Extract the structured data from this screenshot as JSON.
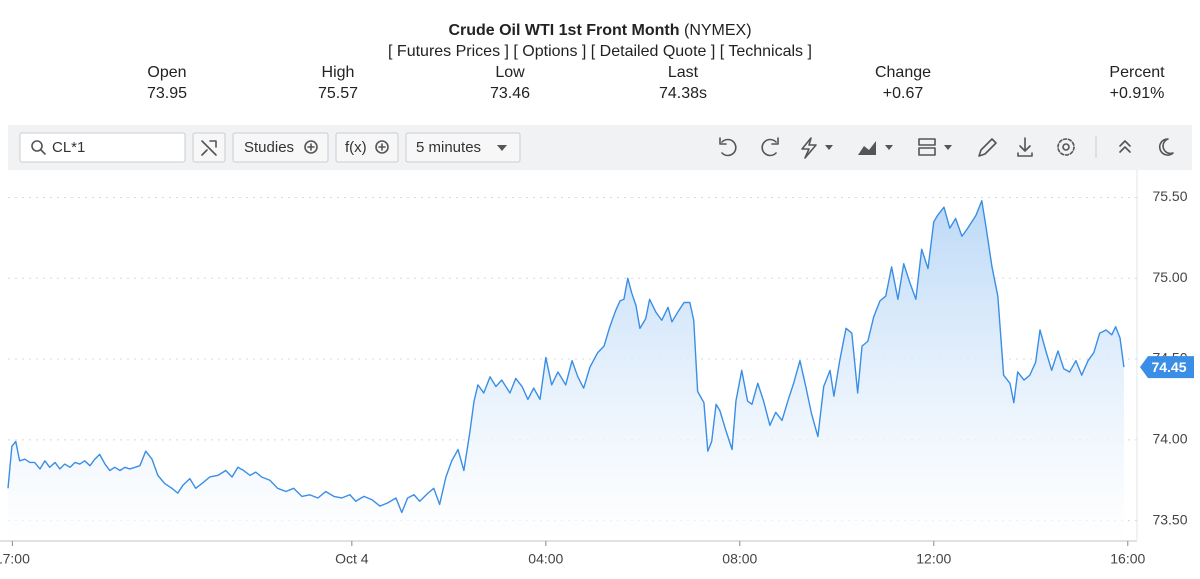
{
  "header": {
    "title": "Crude Oil WTI 1st Front Month",
    "exchange": "(NYMEX)",
    "links": [
      "[ Futures Prices ]",
      "[ Options ]",
      "[ Detailed Quote ]",
      "[ Technicals ]"
    ]
  },
  "quote": [
    {
      "label": "Open",
      "value": "73.95"
    },
    {
      "label": "High",
      "value": "75.57"
    },
    {
      "label": "Low",
      "value": "73.46"
    },
    {
      "label": "Last",
      "value": "74.38s"
    },
    {
      "label": "Change",
      "value": "+0.67",
      "color": "#1e8c1e"
    },
    {
      "label": "Percent",
      "value": "+0.91%",
      "color": "#1e8c1e"
    }
  ],
  "toolbar": {
    "symbol": "CL*1",
    "studies": "Studies",
    "functions": "f(x)",
    "interval": "5 minutes"
  },
  "chart_data": {
    "type": "area",
    "color": "#3a8ee6",
    "grid": true,
    "last_price": 74.45,
    "xlim": [
      -7.09,
      16.19
    ],
    "xticks": [
      {
        "value": -7,
        "label": "17:00"
      },
      {
        "value": 0,
        "label": "Oct 4"
      },
      {
        "value": 4,
        "label": "04:00"
      },
      {
        "value": 8,
        "label": "08:00"
      },
      {
        "value": 12,
        "label": "12:00"
      },
      {
        "value": 16,
        "label": "16:00"
      }
    ],
    "ylim": [
      73.38,
      75.67
    ],
    "yticks": [
      {
        "value": 73.5,
        "label": "73.50"
      },
      {
        "value": 74,
        "label": "74.00"
      },
      {
        "value": 74.5,
        "label": "74.50"
      },
      {
        "value": 75,
        "label": "75.00"
      },
      {
        "value": 75.5,
        "label": "75.50"
      }
    ],
    "x": [
      -7.09,
      -7.01,
      -6.93,
      -6.85,
      -6.74,
      -6.64,
      -6.54,
      -6.43,
      -6.33,
      -6.23,
      -6.12,
      -6.02,
      -5.92,
      -5.81,
      -5.71,
      -5.61,
      -5.51,
      -5.4,
      -5.3,
      -5.2,
      -5.09,
      -4.99,
      -4.89,
      -4.78,
      -4.68,
      -4.58,
      -4.47,
      -4.37,
      -4.25,
      -4.12,
      -4.0,
      -3.86,
      -3.71,
      -3.59,
      -3.48,
      -3.34,
      -3.22,
      -3.09,
      -2.93,
      -2.76,
      -2.6,
      -2.47,
      -2.35,
      -2.23,
      -2.1,
      -1.98,
      -1.86,
      -1.69,
      -1.53,
      -1.36,
      -1.2,
      -1.03,
      -0.87,
      -0.7,
      -0.54,
      -0.37,
      -0.21,
      -0.04,
      0.08,
      0.25,
      0.41,
      0.58,
      0.74,
      0.91,
      1.03,
      1.15,
      1.28,
      1.4,
      1.57,
      1.69,
      1.81,
      1.94,
      2.06,
      2.19,
      2.31,
      2.43,
      2.52,
      2.6,
      2.72,
      2.85,
      2.97,
      3.09,
      3.26,
      3.38,
      3.51,
      3.63,
      3.75,
      3.88,
      4.0,
      4.12,
      4.25,
      4.41,
      4.54,
      4.66,
      4.78,
      4.91,
      5.07,
      5.2,
      5.32,
      5.44,
      5.53,
      5.61,
      5.69,
      5.77,
      5.86,
      5.94,
      6.06,
      6.14,
      6.27,
      6.39,
      6.52,
      6.6,
      6.72,
      6.85,
      6.97,
      7.05,
      7.13,
      7.26,
      7.34,
      7.42,
      7.51,
      7.59,
      7.71,
      7.84,
      7.92,
      8.04,
      8.16,
      8.25,
      8.37,
      8.49,
      8.62,
      8.74,
      8.87,
      8.99,
      9.11,
      9.24,
      9.36,
      9.48,
      9.61,
      9.73,
      9.86,
      9.94,
      10.06,
      10.19,
      10.31,
      10.43,
      10.52,
      10.64,
      10.76,
      10.89,
      11.01,
      11.13,
      11.26,
      11.38,
      11.51,
      11.63,
      11.75,
      11.88,
      12.0,
      12.08,
      12.21,
      12.33,
      12.45,
      12.58,
      12.7,
      12.87,
      12.99,
      13.07,
      13.2,
      13.32,
      13.44,
      13.57,
      13.65,
      13.73,
      13.86,
      13.98,
      14.1,
      14.19,
      14.31,
      14.43,
      14.56,
      14.68,
      14.8,
      14.93,
      15.05,
      15.18,
      15.3,
      15.42,
      15.55,
      15.67,
      15.75,
      15.84,
      15.92
    ],
    "values": [
      73.7,
      73.96,
      73.99,
      73.87,
      73.88,
      73.86,
      73.86,
      73.82,
      73.87,
      73.83,
      73.86,
      73.82,
      73.85,
      73.83,
      73.86,
      73.85,
      73.87,
      73.84,
      73.88,
      73.91,
      73.85,
      73.81,
      73.83,
      73.81,
      73.83,
      73.82,
      73.83,
      73.84,
      73.93,
      73.88,
      73.78,
      73.73,
      73.7,
      73.67,
      73.72,
      73.76,
      73.7,
      73.73,
      73.77,
      73.78,
      73.81,
      73.77,
      73.83,
      73.81,
      73.78,
      73.8,
      73.77,
      73.75,
      73.7,
      73.68,
      73.7,
      73.65,
      73.66,
      73.64,
      73.68,
      73.65,
      73.64,
      73.66,
      73.62,
      73.65,
      73.63,
      73.59,
      73.61,
      73.64,
      73.55,
      73.64,
      73.66,
      73.62,
      73.67,
      73.7,
      73.6,
      73.77,
      73.87,
      73.94,
      73.81,
      74.04,
      74.24,
      74.34,
      74.29,
      74.39,
      74.33,
      74.37,
      74.29,
      74.38,
      74.33,
      74.25,
      74.32,
      74.25,
      74.51,
      74.34,
      74.42,
      74.34,
      74.49,
      74.39,
      74.32,
      74.45,
      74.54,
      74.58,
      74.7,
      74.8,
      74.86,
      74.87,
      75.0,
      74.91,
      74.83,
      74.69,
      74.75,
      74.87,
      74.79,
      74.74,
      74.82,
      74.73,
      74.79,
      74.85,
      74.85,
      74.74,
      74.3,
      74.23,
      73.93,
      73.99,
      74.22,
      74.18,
      74.06,
      73.94,
      74.24,
      74.43,
      74.24,
      74.22,
      74.35,
      74.24,
      74.09,
      74.17,
      74.12,
      74.24,
      74.35,
      74.49,
      74.33,
      74.16,
      74.02,
      74.33,
      74.43,
      74.27,
      74.49,
      74.69,
      74.66,
      74.29,
      74.58,
      74.61,
      74.76,
      74.86,
      74.89,
      75.07,
      74.87,
      75.09,
      74.97,
      74.87,
      75.18,
      75.06,
      75.35,
      75.39,
      75.44,
      75.31,
      75.37,
      75.26,
      75.31,
      75.39,
      75.48,
      75.33,
      75.07,
      74.89,
      74.4,
      74.35,
      74.23,
      74.42,
      74.37,
      74.4,
      74.48,
      74.68,
      74.55,
      74.43,
      74.55,
      74.44,
      74.42,
      74.49,
      74.4,
      74.49,
      74.54,
      74.66,
      74.68,
      74.65,
      74.7,
      74.63,
      74.45
    ]
  }
}
